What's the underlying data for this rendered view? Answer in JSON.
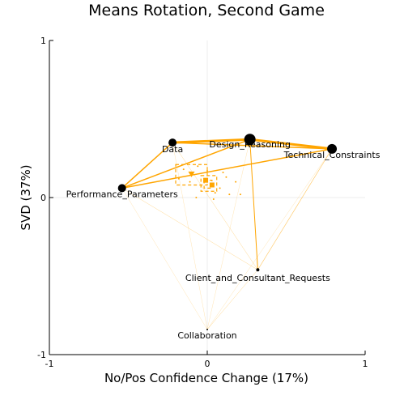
{
  "chart_data": {
    "type": "scatter",
    "title": "Means Rotation, Second Game",
    "xlabel": "No/Pos Confidence Change (17%)",
    "ylabel": "SVD (37%)",
    "xlim": [
      -1,
      1
    ],
    "ylim": [
      -1,
      1
    ],
    "xticks": [
      "-1",
      "0",
      "1"
    ],
    "yticks": [
      "-1",
      "0",
      "1"
    ],
    "grid": true,
    "legend": "none",
    "colors": {
      "edge": "#ffa500",
      "node": "#000000",
      "grid": "#eeeeee",
      "axis": "#000000"
    },
    "nodes": [
      {
        "label": "Data",
        "x": -0.22,
        "y": 0.35,
        "size": 5
      },
      {
        "label": "Design_Reasoning",
        "x": 0.27,
        "y": 0.37,
        "size": 7
      },
      {
        "label": "Technical_Constraints",
        "x": 0.79,
        "y": 0.31,
        "size": 6
      },
      {
        "label": "Performance_Parameters",
        "x": -0.54,
        "y": 0.06,
        "size": 5
      },
      {
        "label": "Client_and_Consultant_Requests",
        "x": 0.32,
        "y": -0.46,
        "size": 2
      },
      {
        "label": "Collaboration",
        "x": 0.0,
        "y": -0.84,
        "size": 1
      }
    ],
    "edges": [
      {
        "from": "Data",
        "to": "Design_Reasoning",
        "weight": 3
      },
      {
        "from": "Data",
        "to": "Technical_Constraints",
        "weight": 1.5
      },
      {
        "from": "Design_Reasoning",
        "to": "Technical_Constraints",
        "weight": 3
      },
      {
        "from": "Performance_Parameters",
        "to": "Data",
        "weight": 1.5
      },
      {
        "from": "Performance_Parameters",
        "to": "Design_Reasoning",
        "weight": 1.5
      },
      {
        "from": "Performance_Parameters",
        "to": "Technical_Constraints",
        "weight": 1.5
      },
      {
        "from": "Design_Reasoning",
        "to": "Client_and_Consultant_Requests",
        "weight": 1
      },
      {
        "from": "Technical_Constraints",
        "to": "Client_and_Consultant_Requests",
        "weight": 0.6
      },
      {
        "from": "Performance_Parameters",
        "to": "Client_and_Consultant_Requests",
        "weight": 0.4
      },
      {
        "from": "Data",
        "to": "Client_and_Consultant_Requests",
        "weight": 0.4
      },
      {
        "from": "Performance_Parameters",
        "to": "Collaboration",
        "weight": 0.3
      },
      {
        "from": "Client_and_Consultant_Requests",
        "to": "Collaboration",
        "weight": 0.4
      },
      {
        "from": "Design_Reasoning",
        "to": "Collaboration",
        "weight": 0.3
      },
      {
        "from": "Technical_Constraints",
        "to": "Collaboration",
        "weight": 0.3
      },
      {
        "from": "Data",
        "to": "Collaboration",
        "weight": 0.3
      }
    ],
    "means": [
      {
        "x": -0.09,
        "y": 0.15
      },
      {
        "x": 0.0,
        "y": 0.09
      },
      {
        "x": -0.05,
        "y": 0.12
      },
      {
        "x": 0.03,
        "y": 0.07
      },
      {
        "x": -0.02,
        "y": 0.08
      }
    ],
    "mean_markers": [
      {
        "shape": "triangle",
        "x": -0.1,
        "y": 0.15
      },
      {
        "shape": "square",
        "x": -0.01,
        "y": 0.11
      },
      {
        "shape": "square",
        "x": 0.03,
        "y": 0.08
      }
    ],
    "confidence_boxes": [
      {
        "x0": -0.2,
        "x1": 0.0,
        "y0": 0.08,
        "y1": 0.21
      },
      {
        "x0": -0.04,
        "x1": 0.06,
        "y0": 0.04,
        "y1": 0.14
      },
      {
        "x0": -0.02,
        "x1": 0.03,
        "y0": 0.06,
        "y1": 0.11
      }
    ],
    "dots": [
      {
        "x": -0.15,
        "y": 0.18
      },
      {
        "x": -0.06,
        "y": 0.2
      },
      {
        "x": 0.12,
        "y": 0.13
      },
      {
        "x": 0.18,
        "y": 0.1
      },
      {
        "x": 0.14,
        "y": 0.02
      },
      {
        "x": -0.07,
        "y": 0.0
      },
      {
        "x": 0.04,
        "y": -0.01
      },
      {
        "x": 0.21,
        "y": 0.02
      },
      {
        "x": -0.11,
        "y": 0.1
      },
      {
        "x": 0.08,
        "y": 0.06
      },
      {
        "x": 0.0,
        "y": 0.17
      },
      {
        "x": -0.18,
        "y": 0.12
      },
      {
        "x": 0.1,
        "y": 0.16
      },
      {
        "x": 0.05,
        "y": 0.03
      }
    ]
  }
}
